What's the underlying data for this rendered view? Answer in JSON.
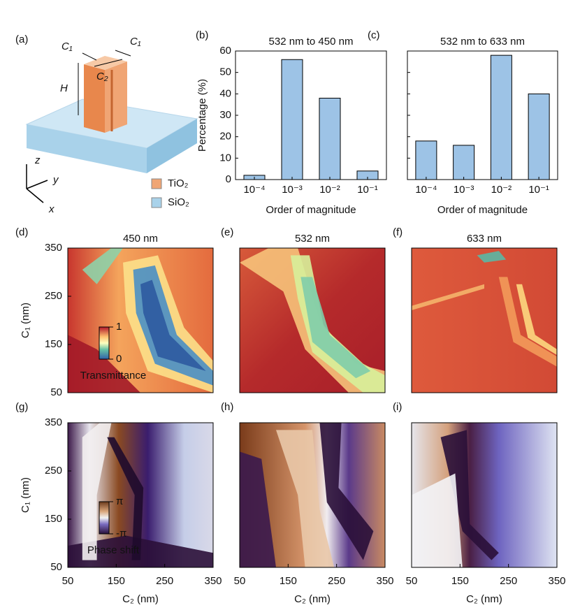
{
  "diagram": {
    "label": "(a)",
    "c1_left": "C₁",
    "c1_right": "C₁",
    "c2": "C₂",
    "height": "H",
    "axis_z": "z",
    "axis_y": "y",
    "axis_x": "x",
    "legend": [
      {
        "name": "TiO₂",
        "color": "#f0a574"
      },
      {
        "name": "SiO₂",
        "color": "#a9d2ea"
      }
    ]
  },
  "chart_data": [
    {
      "type": "bar",
      "label": "(b)",
      "title": "532 nm to 450 nm",
      "xlabel": "Order of magnitude",
      "ylabel": "Percentage (%)",
      "categories": [
        "10⁻⁴",
        "10⁻³",
        "10⁻²",
        "10⁻¹"
      ],
      "values": [
        2,
        56,
        38,
        4
      ],
      "color": "#9dc3e6",
      "ylim": [
        0,
        60
      ],
      "yticks": [
        0,
        10,
        20,
        30,
        40,
        50,
        60
      ],
      "tick_labels": true
    },
    {
      "type": "bar",
      "label": "(c)",
      "title": "532 nm to 633 nm",
      "xlabel": "Order of magnitude",
      "categories": [
        "10⁻⁴",
        "10⁻³",
        "10⁻²",
        "10⁻¹"
      ],
      "values": [
        18,
        16,
        58,
        40
      ],
      "color": "#9dc3e6",
      "ylim": [
        0,
        60
      ],
      "yticks": [
        0,
        10,
        20,
        30,
        40,
        50,
        60
      ],
      "tick_labels": false
    },
    {
      "type": "heatmap",
      "label": "(d)",
      "title": "450 nm",
      "ylabel": "C₁ (nm)",
      "xlim": [
        50,
        350
      ],
      "ylim": [
        50,
        350
      ],
      "yticks": [
        50,
        150,
        250,
        350
      ],
      "colorbar": {
        "label": "Transmittance",
        "clim": [
          0,
          1
        ],
        "ticks": [
          1,
          0
        ]
      }
    },
    {
      "type": "heatmap",
      "label": "(e)",
      "title": "532 nm",
      "xlim": [
        50,
        350
      ],
      "ylim": [
        50,
        350
      ]
    },
    {
      "type": "heatmap",
      "label": "(f)",
      "title": "633 nm",
      "xlim": [
        50,
        350
      ],
      "ylim": [
        50,
        350
      ]
    },
    {
      "type": "heatmap",
      "label": "(g)",
      "ylabel": "C₁ (nm)",
      "xlabel": "C₂ (nm)",
      "xlim": [
        50,
        350
      ],
      "ylim": [
        50,
        350
      ],
      "xticks": [
        50,
        150,
        250,
        350
      ],
      "yticks": [
        50,
        150,
        250,
        350
      ],
      "colorbar": {
        "label": "Phase shift",
        "clim": [
          -3.14159,
          3.14159
        ],
        "ticks": [
          {
            "value": 3.14159,
            "label": "π"
          },
          {
            "value": -3.14159,
            "label": "-π"
          }
        ]
      }
    },
    {
      "type": "heatmap",
      "label": "(h)",
      "xlabel": "C₂ (nm)",
      "xlim": [
        50,
        350
      ],
      "ylim": [
        50,
        350
      ],
      "xticks": [
        50,
        150,
        250,
        350
      ]
    },
    {
      "type": "heatmap",
      "label": "(i)",
      "xlabel": "C₂ (nm)",
      "xlim": [
        50,
        350
      ],
      "ylim": [
        50,
        350
      ],
      "xticks": [
        50,
        150,
        250,
        350
      ]
    }
  ]
}
